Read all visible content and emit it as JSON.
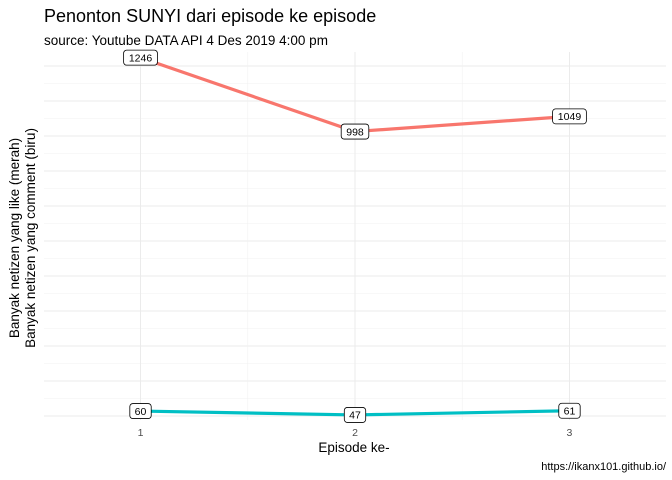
{
  "chart_data": {
    "type": "line",
    "title": "Penonton SUNYI dari episode ke episode",
    "subtitle": "source: Youtube DATA API 4 Des 2019 4:00 pm",
    "xlabel": "Episode ke-",
    "ylabel_line1": "Banyak netizen yang like (merah)",
    "ylabel_line2": "Banyak netizen yang comment (biru)",
    "caption": "https://ikanx101.github.io/",
    "x": [
      1,
      2,
      3
    ],
    "x_tick_labels": [
      "1",
      "2",
      "3"
    ],
    "xlim": [
      0.55,
      3.45
    ],
    "ylim": [
      30,
      1265
    ],
    "grid": true,
    "legend": "none",
    "series": [
      {
        "values": [
          1246,
          998,
          1049
        ],
        "labels": [
          "1246",
          "998",
          "1049"
        ],
        "color": "#F8766D"
      },
      {
        "values": [
          60,
          47,
          61
        ],
        "labels": [
          "60",
          "47",
          "61"
        ],
        "color": "#00BFC4"
      }
    ]
  }
}
